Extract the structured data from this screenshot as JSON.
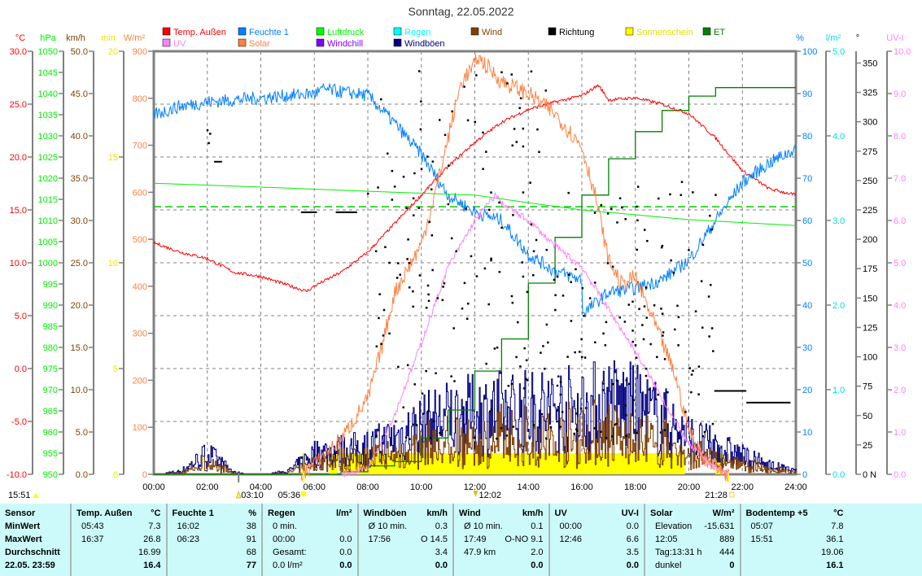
{
  "title": "Sonntag, 22.05.2022",
  "legend": [
    {
      "label": "Temp. Außen",
      "color": "#ff0000"
    },
    {
      "label": "Feuchte 1",
      "color": "#0080ff"
    },
    {
      "label": "Luftdruck",
      "color": "#00ff00"
    },
    {
      "label": "Regen",
      "color": "#00ffff"
    },
    {
      "label": "Wind",
      "color": "#804000"
    },
    {
      "label": "Richtung",
      "color": "#000000"
    },
    {
      "label": "Sonnenschein",
      "color": "#ffff00"
    },
    {
      "label": "ET",
      "color": "#008000"
    },
    {
      "label": "UV",
      "color": "#ff80ff"
    },
    {
      "label": "Solar",
      "color": "#ff8040"
    },
    {
      "label": "Windchill",
      "color": "#8000ff"
    },
    {
      "label": "Windböen",
      "color": "#000080"
    }
  ],
  "chart_data": {
    "type": "line",
    "title": "Sonntag, 22.05.2022",
    "xlabel": "",
    "x_range": [
      0,
      24
    ],
    "x_ticks": [
      "00:00",
      "02:00",
      "04:00",
      "06:00",
      "08:00",
      "10:00",
      "12:00",
      "14:00",
      "16:00",
      "18:00",
      "20:00",
      "22:00",
      "24:00"
    ],
    "grid": true,
    "axes": [
      {
        "id": "temp",
        "unit": "°C",
        "color": "#ff0000",
        "side": "left",
        "min": -10,
        "max": 30,
        "ticks": [
          "30.0",
          "25.0",
          "20.0",
          "15.0",
          "10.0",
          "5.0",
          "0.0",
          "-5.0",
          "-10.0"
        ]
      },
      {
        "id": "hpa",
        "unit": "hPa",
        "color": "#00ee00",
        "side": "left",
        "min": 950,
        "max": 1050,
        "ticks": [
          "1050",
          "1045",
          "1040",
          "1035",
          "1030",
          "1025",
          "1020",
          "1015",
          "1010",
          "1005",
          "1000",
          "995",
          "990",
          "985",
          "980",
          "975",
          "970",
          "965",
          "960",
          "955",
          "950"
        ]
      },
      {
        "id": "kmh",
        "unit": "km/h",
        "color": "#804000",
        "side": "left",
        "min": 0,
        "max": 50,
        "ticks": [
          "50.0",
          "45.0",
          "40.0",
          "35.0",
          "30.0",
          "25.0",
          "20.0",
          "15.0",
          "10.0",
          "5.0",
          "0.0"
        ]
      },
      {
        "id": "min",
        "unit": "min",
        "color": "#e8e800",
        "side": "left",
        "min": 0,
        "max": 20,
        "ticks": [
          "20",
          "15",
          "10",
          "5",
          "0"
        ]
      },
      {
        "id": "wm2",
        "unit": "W/m²",
        "color": "#ff8040",
        "side": "left",
        "min": 0,
        "max": 900,
        "ticks": [
          "900",
          "800",
          "700",
          "600",
          "500",
          "400",
          "300",
          "200",
          "100",
          "0"
        ]
      },
      {
        "id": "pct",
        "unit": "%",
        "color": "#0080ff",
        "side": "right",
        "min": 0,
        "max": 100,
        "ticks": [
          "100",
          "90",
          "80",
          "70",
          "60",
          "50",
          "40",
          "30",
          "20",
          "10",
          "0"
        ]
      },
      {
        "id": "lm2",
        "unit": "l/m²",
        "color": "#00e0e0",
        "side": "right",
        "min": 0,
        "max": 5,
        "ticks": [
          "5.0",
          "4.0",
          "3.0",
          "2.0",
          "1.0",
          "0.0"
        ]
      },
      {
        "id": "deg",
        "unit": "°",
        "color": "#000000",
        "side": "right",
        "min": 0,
        "max": 360,
        "ticks": [
          "350",
          "325",
          "300",
          "275",
          "250",
          "225",
          "200",
          "175",
          "150",
          "125",
          "100",
          "75",
          "50",
          "25",
          "0 N"
        ]
      },
      {
        "id": "uvi",
        "unit": "UV-I",
        "color": "#ff80ff",
        "side": "right",
        "min": 0,
        "max": 10,
        "ticks": [
          "10.0",
          "9.0",
          "8.0",
          "7.0",
          "6.0",
          "5.0",
          "4.0",
          "3.0",
          "2.0",
          "1.0",
          "0.0"
        ]
      }
    ],
    "series": [
      {
        "name": "Temp. Außen",
        "axis": "temp",
        "color": "#ff0000",
        "noise": 0.15,
        "points": [
          [
            0,
            11.9
          ],
          [
            1,
            11.0
          ],
          [
            2,
            10.4
          ],
          [
            3,
            9.1
          ],
          [
            4,
            8.7
          ],
          [
            5,
            7.9
          ],
          [
            5.72,
            7.3
          ],
          [
            6,
            7.8
          ],
          [
            7,
            9.1
          ],
          [
            8,
            11.0
          ],
          [
            9,
            13.7
          ],
          [
            10,
            16.4
          ],
          [
            11,
            19.1
          ],
          [
            12,
            21.4
          ],
          [
            13,
            23.3
          ],
          [
            14,
            24.5
          ],
          [
            15,
            25.2
          ],
          [
            16,
            25.8
          ],
          [
            16.62,
            26.8
          ],
          [
            17,
            25.4
          ],
          [
            18,
            25.6
          ],
          [
            19,
            25.0
          ],
          [
            20,
            24.1
          ],
          [
            21,
            21.8
          ],
          [
            22,
            18.7
          ],
          [
            23,
            17.0
          ],
          [
            24,
            16.4
          ]
        ]
      },
      {
        "name": "Feuchte 1",
        "axis": "pct",
        "color": "#0080ff",
        "noise": 1.6,
        "points": [
          [
            0,
            85
          ],
          [
            1,
            87
          ],
          [
            2,
            88
          ],
          [
            4,
            89
          ],
          [
            6,
            90
          ],
          [
            6.38,
            91
          ],
          [
            7,
            90.4
          ],
          [
            8,
            89.6
          ],
          [
            9,
            83
          ],
          [
            10,
            75.6
          ],
          [
            11,
            66
          ],
          [
            12,
            62
          ],
          [
            13,
            60
          ],
          [
            14,
            52
          ],
          [
            15,
            48
          ],
          [
            16,
            46
          ],
          [
            16.03,
            38
          ],
          [
            17,
            43
          ],
          [
            18,
            44
          ],
          [
            19,
            46
          ],
          [
            20,
            50.6
          ],
          [
            21,
            60
          ],
          [
            22,
            69
          ],
          [
            23,
            73.6
          ],
          [
            24,
            77
          ]
        ]
      },
      {
        "name": "Luftdruck",
        "axis": "hpa",
        "color": "#00ee00",
        "noise": 0,
        "points": [
          [
            0,
            1018.8
          ],
          [
            4,
            1017.9
          ],
          [
            8,
            1016.9
          ],
          [
            12,
            1016.0
          ],
          [
            14,
            1014.2
          ],
          [
            16,
            1012.5
          ],
          [
            20,
            1010.2
          ],
          [
            24,
            1008.8
          ]
        ]
      },
      {
        "name": "Solar",
        "axis": "wm2",
        "color": "#ff8040",
        "noise": 18,
        "points": [
          [
            5.5,
            0
          ],
          [
            6,
            22
          ],
          [
            7,
            74
          ],
          [
            8,
            161
          ],
          [
            8.5,
            265
          ],
          [
            9,
            386
          ],
          [
            10,
            490
          ],
          [
            10.5,
            594
          ],
          [
            11,
            715
          ],
          [
            11.5,
            836
          ],
          [
            12,
            870
          ],
          [
            12.08,
            889
          ],
          [
            13,
            836
          ],
          [
            14,
            810
          ],
          [
            15,
            767
          ],
          [
            16,
            697
          ],
          [
            16.5,
            594
          ],
          [
            17,
            455
          ],
          [
            17.5,
            403
          ],
          [
            18,
            420
          ],
          [
            18.5,
            351
          ],
          [
            19,
            282
          ],
          [
            19.5,
            208
          ],
          [
            20,
            92
          ],
          [
            20.5,
            40
          ],
          [
            21,
            14
          ],
          [
            21.5,
            0
          ]
        ]
      },
      {
        "name": "UV",
        "axis": "uvi",
        "color": "#ff80ff",
        "noise": 0.08,
        "points": [
          [
            7,
            0
          ],
          [
            8,
            0.15
          ],
          [
            9,
            1.4
          ],
          [
            10,
            3.1
          ],
          [
            11,
            4.9
          ],
          [
            12,
            6.0
          ],
          [
            12.77,
            6.6
          ],
          [
            13,
            6.4
          ],
          [
            14,
            6.0
          ],
          [
            15,
            5.4
          ],
          [
            16,
            4.9
          ],
          [
            17,
            3.9
          ],
          [
            18,
            2.9
          ],
          [
            19,
            1.8
          ],
          [
            20,
            0.7
          ],
          [
            21,
            0.15
          ],
          [
            21.5,
            0
          ]
        ]
      }
    ],
    "pressure_reference": {
      "axis": "hpa",
      "value": 1013.25,
      "color": "#00cc00"
    },
    "et": {
      "name": "ET",
      "axis": "lm2",
      "color": "#008000",
      "steps": [
        [
          0,
          0
        ],
        [
          7,
          0.03
        ],
        [
          8,
          0.1
        ],
        [
          9,
          0.15
        ],
        [
          10,
          0.43
        ],
        [
          11,
          0.76
        ],
        [
          12,
          1.22
        ],
        [
          13,
          1.6
        ],
        [
          14,
          2.26
        ],
        [
          15,
          2.8
        ],
        [
          16,
          3.3
        ],
        [
          17,
          3.73
        ],
        [
          18,
          4.05
        ],
        [
          19,
          4.3
        ],
        [
          20,
          4.47
        ],
        [
          21,
          4.57
        ],
        [
          24,
          4.57
        ]
      ]
    },
    "wind": {
      "axis": "kmh",
      "gust_color": "#000080",
      "wind_color": "#804000",
      "gust_envelope_hourly": [
        0,
        0.5,
        3.5,
        0.3,
        0,
        0.5,
        3.5,
        4,
        4.5,
        6,
        8,
        9.5,
        10,
        10.5,
        10.5,
        11,
        11,
        12,
        11,
        9,
        6,
        4.5,
        3,
        1.5,
        0.5
      ],
      "wind_ratio": 0.55,
      "max_gust": 14.5
    },
    "sunshine": {
      "axis": "min",
      "color": "#ffff00",
      "value": 1,
      "intervals": [
        [
          5.55,
          5.65
        ],
        [
          6.55,
          6.85
        ],
        [
          7.0,
          19.85
        ],
        [
          21.0,
          21.3
        ]
      ]
    },
    "direction": {
      "axis": "deg",
      "color": "#000000",
      "segments": [
        [
          2.25,
          2.55,
          266
        ],
        [
          5.5,
          6.1,
          223
        ],
        [
          6.8,
          7.6,
          223
        ],
        [
          20.95,
          22.15,
          71
        ],
        [
          22.15,
          23.8,
          61
        ]
      ],
      "points": [
        [
          2.0,
          293
        ],
        [
          2.05,
          282
        ],
        [
          2.1,
          290
        ],
        [
          8.0,
          239
        ],
        [
          8.3,
          190
        ],
        [
          8.6,
          140
        ],
        [
          8.8,
          120
        ],
        [
          9.0,
          245
        ],
        [
          9.2,
          170
        ],
        [
          9.5,
          200
        ],
        [
          9.7,
          235
        ],
        [
          10,
          260
        ],
        [
          10.3,
          215
        ],
        [
          10.6,
          150
        ],
        [
          11,
          230
        ],
        [
          11.3,
          190
        ],
        [
          11.6,
          330
        ],
        [
          12,
          300
        ],
        [
          12.3,
          260
        ],
        [
          12.6,
          240
        ],
        [
          13,
          210
        ],
        [
          13.4,
          280
        ],
        [
          13.8,
          240
        ],
        [
          14.2,
          190
        ],
        [
          14.6,
          90
        ],
        [
          15,
          140
        ],
        [
          15.5,
          170
        ],
        [
          16,
          100
        ],
        [
          16.3,
          150
        ],
        [
          16.8,
          120
        ],
        [
          17.3,
          80
        ],
        [
          17.6,
          130
        ],
        [
          18,
          110
        ],
        [
          18.4,
          90
        ],
        [
          18.8,
          100
        ],
        [
          19.2,
          70
        ],
        [
          19.6,
          110
        ],
        [
          20.1,
          85
        ],
        [
          20.5,
          125
        ],
        [
          20.9,
          105
        ]
      ],
      "scatter": {
        "from": 8.3,
        "to": 21,
        "min": 30,
        "max": 345,
        "count": 260
      }
    },
    "annotations": [
      {
        "label": "15:51",
        "marker": "sun-max",
        "color": "#ffff00"
      },
      {
        "label": "03:10",
        "hour": 3.17,
        "marker": "moon-rise",
        "color": "#808080"
      },
      {
        "label": "05:36",
        "hour": 5.6,
        "marker": "sunrise",
        "color": "#ffff00"
      },
      {
        "label": "12:02",
        "hour": 12.03,
        "marker": "noon",
        "color": "#ffff00"
      },
      {
        "label": "21:28",
        "hour": 21.47,
        "marker": "sunset",
        "color": "#ffff00"
      }
    ]
  },
  "table": {
    "sensor": {
      "head": "Sensor",
      "rows": [
        "MinWert",
        "MaxWert",
        "Durchschnitt",
        "22.05. 23:59"
      ]
    },
    "columns": [
      {
        "head": "Temp. Außen",
        "unit": "°C",
        "rows": [
          [
            "05:43",
            "7.3"
          ],
          [
            "16:37",
            "26.8"
          ],
          [
            "",
            "16.99"
          ],
          [
            "",
            "16.4"
          ]
        ]
      },
      {
        "head": "Feuchte 1",
        "unit": "%",
        "rows": [
          [
            "16:02",
            "38"
          ],
          [
            "06:23",
            "91"
          ],
          [
            "",
            "68"
          ],
          [
            "",
            "77"
          ]
        ]
      },
      {
        "head": "Regen",
        "unit": "l/m²",
        "rows": [
          [
            "0 min.",
            ""
          ],
          [
            "00:00",
            "0.0"
          ],
          [
            "Gesamt:",
            "0.0"
          ],
          [
            "0.0 l/m²",
            "0.0"
          ]
        ]
      },
      {
        "head": "Windböen",
        "unit": "km/h",
        "rows": [
          [
            "Ø 10 min.",
            "0.3"
          ],
          [
            "17:56",
            "O 14.5"
          ],
          [
            "",
            "3.4"
          ],
          [
            "",
            "0.0"
          ]
        ]
      },
      {
        "head": "Wind",
        "unit": "km/h",
        "rows": [
          [
            "Ø 10 min.",
            "0.1"
          ],
          [
            "17:49",
            "O-NO 9.1"
          ],
          [
            "47.9 km",
            "2.0"
          ],
          [
            "",
            "0.0"
          ]
        ]
      },
      {
        "head": "UV",
        "unit": "UV-I",
        "rows": [
          [
            "00:00",
            "0.0"
          ],
          [
            "12:46",
            "6.6"
          ],
          [
            "",
            "3.5"
          ],
          [
            "",
            "0.0"
          ]
        ]
      },
      {
        "head": "Solar",
        "unit": "W/m²",
        "rows": [
          [
            "Elevation",
            "-15.631"
          ],
          [
            "12:05",
            "889"
          ],
          [
            "Tag:13:31 h",
            "444"
          ],
          [
            "dunkel",
            "0"
          ]
        ]
      },
      {
        "head": "Bodentemp +5",
        "unit": "°C",
        "rows": [
          [
            "05:07",
            "7.8"
          ],
          [
            "15:51",
            "36.1"
          ],
          [
            "",
            "19.06"
          ],
          [
            "",
            "16.1"
          ]
        ]
      }
    ]
  }
}
